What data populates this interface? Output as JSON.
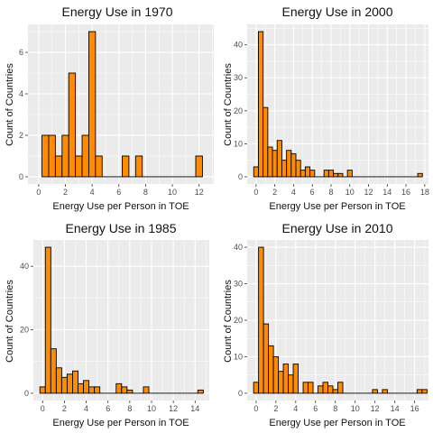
{
  "chart_data": [
    {
      "type": "bar",
      "title": "Energy Use in 1970",
      "xlabel": "Energy Use per Person in TOE",
      "ylabel": "Count of Countries",
      "xlim": [
        -0.8,
        13.1
      ],
      "ylim": [
        -0.35,
        7.35
      ],
      "x_ticks": [
        0,
        2,
        4,
        6,
        8,
        10,
        12
      ],
      "y_ticks": [
        0,
        2,
        4,
        6
      ],
      "bin_width": 0.5,
      "bin_centers": [
        0.5,
        1.0,
        1.5,
        2.0,
        2.5,
        3.0,
        3.5,
        4.0,
        4.5,
        5.0,
        5.5,
        6.0,
        6.5,
        7.0,
        7.5,
        8.0,
        8.5,
        9.0,
        9.5,
        10.0,
        10.5,
        11.0,
        11.5,
        12.0
      ],
      "counts": [
        2,
        2,
        1,
        2,
        5,
        1,
        2,
        7,
        1,
        0,
        0,
        0,
        1,
        0,
        1,
        0,
        0,
        0,
        0,
        0,
        0,
        0,
        0,
        1
      ],
      "grid": true,
      "bar_color": "#FF8C00",
      "bar_outline": "#000000"
    },
    {
      "type": "bar",
      "title": "Energy Use in 2000",
      "xlabel": "Energy Use per Person in TOE",
      "ylabel": "Count of Countries",
      "xlim": [
        -0.95,
        18.4
      ],
      "ylim": [
        -2.2,
        46.2
      ],
      "x_ticks": [
        0,
        2,
        4,
        6,
        8,
        10,
        12,
        14,
        16,
        18
      ],
      "y_ticks": [
        0,
        10,
        20,
        30,
        40
      ],
      "bin_width": 0.5,
      "bin_centers": [
        0.0,
        0.5,
        1.0,
        1.5,
        2.0,
        2.5,
        3.0,
        3.5,
        4.0,
        4.5,
        5.0,
        5.5,
        6.0,
        6.5,
        7.0,
        7.5,
        8.0,
        8.5,
        9.0,
        9.5,
        10.0,
        10.5,
        11.0,
        11.5,
        12.0,
        12.5,
        13.0,
        13.5,
        14.0,
        14.5,
        15.0,
        15.5,
        16.0,
        16.5,
        17.0,
        17.5
      ],
      "counts": [
        3,
        44,
        21,
        9,
        8,
        11,
        5,
        8,
        7,
        5,
        2,
        3,
        2,
        0,
        0,
        2,
        2,
        1,
        1,
        0,
        2,
        0,
        0,
        0,
        0,
        0,
        0,
        0,
        0,
        0,
        0,
        0,
        0,
        0,
        0,
        1
      ],
      "grid": true,
      "bar_color": "#FF8C00",
      "bar_outline": "#000000"
    },
    {
      "type": "bar",
      "title": "Energy Use in 1985",
      "xlabel": "Energy Use per Person in TOE",
      "ylabel": "Count of Countries",
      "xlim": [
        -0.85,
        15.3
      ],
      "ylim": [
        -2.3,
        48.3
      ],
      "x_ticks": [
        0,
        2,
        4,
        6,
        8,
        10,
        12,
        14
      ],
      "y_ticks": [
        0,
        20,
        40
      ],
      "bin_width": 0.5,
      "bin_centers": [
        0.0,
        0.5,
        1.0,
        1.5,
        2.0,
        2.5,
        3.0,
        3.5,
        4.0,
        4.5,
        5.0,
        5.5,
        6.0,
        6.5,
        7.0,
        7.5,
        8.0,
        8.5,
        9.0,
        9.5,
        10.0,
        10.5,
        11.0,
        11.5,
        12.0,
        12.5,
        13.0,
        13.5,
        14.0,
        14.5
      ],
      "counts": [
        2,
        46,
        14,
        8,
        5,
        6,
        7,
        3,
        4,
        2,
        2,
        0,
        0,
        0,
        3,
        2,
        1,
        0,
        0,
        2,
        0,
        0,
        0,
        0,
        0,
        0,
        0,
        0,
        0,
        1
      ],
      "grid": true,
      "bar_color": "#FF8C00",
      "bar_outline": "#000000"
    },
    {
      "type": "bar",
      "title": "Energy Use in 2010",
      "xlabel": "Energy Use per Person in TOE",
      "ylabel": "Count of Countries",
      "xlim": [
        -0.9,
        17.4
      ],
      "ylim": [
        -2.0,
        42.0
      ],
      "x_ticks": [
        0,
        2,
        4,
        6,
        8,
        10,
        12,
        14,
        16
      ],
      "y_ticks": [
        0,
        10,
        20,
        30,
        40
      ],
      "bin_width": 0.5,
      "bin_centers": [
        0.0,
        0.5,
        1.0,
        1.5,
        2.0,
        2.5,
        3.0,
        3.5,
        4.0,
        4.5,
        5.0,
        5.5,
        6.0,
        6.5,
        7.0,
        7.5,
        8.0,
        8.5,
        9.0,
        9.5,
        10.0,
        10.5,
        11.0,
        11.5,
        12.0,
        12.5,
        13.0,
        13.5,
        14.0,
        14.5,
        15.0,
        15.5,
        16.0,
        16.5,
        17.0
      ],
      "counts": [
        3,
        40,
        19,
        13,
        10,
        6,
        8,
        5,
        8,
        0,
        3,
        3,
        0,
        2,
        3,
        2,
        1,
        3,
        0,
        0,
        0,
        0,
        0,
        0,
        1,
        0,
        1,
        0,
        0,
        0,
        0,
        0,
        0,
        1,
        1
      ],
      "grid": true,
      "bar_color": "#FF8C00",
      "bar_outline": "#000000"
    }
  ]
}
